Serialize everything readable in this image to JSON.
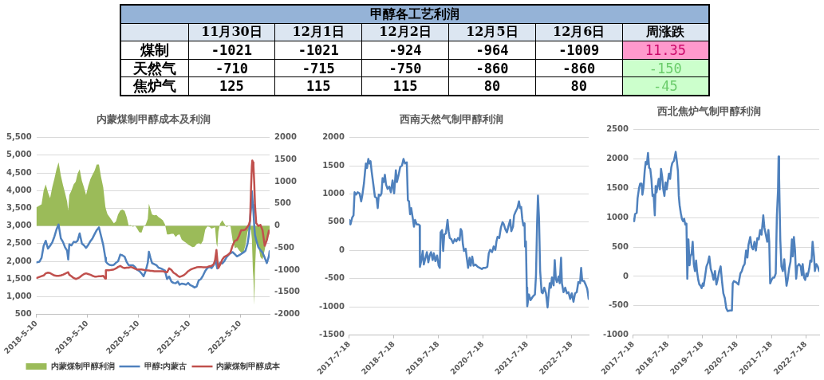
{
  "chart_data": [
    {
      "type": "heatmap",
      "title": "甲醇各工艺利润",
      "categories": [
        "11月30日",
        "12月1日",
        "12月2日",
        "12月5日",
        "12月6日",
        "周涨跌"
      ],
      "y_categories": [
        "煤制",
        "天然气",
        "焦炉气"
      ],
      "cells": [
        [
          -1021,
          -1021,
          -924,
          -964,
          -1009,
          11.35
        ],
        [
          -710,
          -715,
          -750,
          -860,
          -860,
          -150
        ],
        [
          125,
          115,
          115,
          80,
          80,
          -45
        ]
      ],
      "colors": [
        [
          "#ffffff",
          "#ffffff",
          "#ffffff",
          "#ffffff",
          "#ffffff",
          "#ff99cc"
        ],
        [
          "#ffffff",
          "#ffffff",
          "#ffffff",
          "#ffffff",
          "#ffffff",
          "#ccffcc"
        ],
        [
          "#ffffff",
          "#ffffff",
          "#ffffff",
          "#ffffff",
          "#ffffff",
          "#ccffcc"
        ]
      ],
      "data_labels": true
    },
    {
      "type": "line",
      "title": "内蒙煤制甲醇成本及利润",
      "x": [
        "2018-05-10",
        "2018-05-20",
        "2018-06-01",
        "2018-06-16",
        "2018-07-01",
        "2018-07-16",
        "2018-08-01",
        "2018-08-16",
        "2018-09-01",
        "2018-09-16",
        "2018-10-01",
        "2018-10-16",
        "2018-11-01",
        "2018-11-16",
        "2018-12-01",
        "2018-12-16",
        "2018-12-24",
        "2019-01-01",
        "2019-01-16",
        "2019-02-01",
        "2019-02-16",
        "2019-03-01",
        "2019-03-16",
        "2019-04-01",
        "2019-04-16",
        "2019-05-01",
        "2019-05-16",
        "2019-06-01",
        "2019-06-16",
        "2019-07-01",
        "2019-07-16",
        "2019-08-01",
        "2019-08-16",
        "2019-09-01",
        "2019-09-16",
        "2019-09-20",
        "2019-10-01",
        "2019-10-16",
        "2019-11-01",
        "2019-11-16",
        "2019-12-01",
        "2019-12-16",
        "2020-01-01",
        "2020-01-16",
        "2020-02-01",
        "2020-02-16",
        "2020-03-01",
        "2020-03-16",
        "2020-04-01",
        "2020-04-16",
        "2020-05-01",
        "2020-05-16",
        "2020-06-01",
        "2020-06-16",
        "2020-07-01",
        "2020-07-16",
        "2020-07-24",
        "2020-08-04",
        "2020-08-16",
        "2020-09-01",
        "2020-09-16",
        "2020-10-01",
        "2020-10-16",
        "2020-11-01",
        "2020-11-16",
        "2020-12-01",
        "2020-12-16",
        "2021-01-01",
        "2021-01-16",
        "2021-02-01",
        "2021-02-16",
        "2021-03-01",
        "2021-03-16",
        "2021-04-01",
        "2021-04-16",
        "2021-05-01",
        "2021-05-16",
        "2021-06-01",
        "2021-06-16",
        "2021-07-01",
        "2021-07-16",
        "2021-08-01",
        "2021-08-16",
        "2021-09-01",
        "2021-09-16",
        "2021-10-01",
        "2021-10-16",
        "2021-11-01",
        "2021-11-10",
        "2021-11-16",
        "2021-11-20",
        "2021-11-26",
        "2021-12-04",
        "2021-12-16",
        "2022-01-01",
        "2022-01-16",
        "2022-02-01",
        "2022-02-16",
        "2022-03-01",
        "2022-03-16",
        "2022-04-01",
        "2022-04-16",
        "2022-05-01",
        "2022-05-16",
        "2022-06-01",
        "2022-06-16",
        "2022-07-01",
        "2022-07-11",
        "2022-07-19",
        "2022-07-26",
        "2022-08-01",
        "2022-08-04",
        "2022-08-08",
        "2022-08-12",
        "2022-08-18",
        "2022-08-23",
        "2022-09-01",
        "2022-09-16",
        "2022-10-01",
        "2022-10-16",
        "2022-11-01",
        "2022-11-16",
        "2022-12-01",
        "2022-12-06"
      ],
      "series": [
        {
          "name": "内蒙煤制甲醇利润",
          "type": "area",
          "axis": "y2",
          "color": "#9bbb59",
          "values": [
            420,
            440,
            460,
            490,
            800,
            940,
            760,
            630,
            880,
            1070,
            1280,
            1440,
            1140,
            930,
            750,
            550,
            350,
            700,
            800,
            940,
            1000,
            1180,
            1280,
            1020,
            870,
            700,
            900,
            1060,
            1160,
            1250,
            1390,
            1390,
            1110,
            870,
            440,
            380,
            270,
            200,
            130,
            60,
            100,
            260,
            350,
            370,
            340,
            200,
            10,
            20,
            -20,
            10,
            -60,
            -140,
            -150,
            -10,
            30,
            160,
            500,
            380,
            260,
            240,
            250,
            200,
            170,
            130,
            40,
            -190,
            -190,
            -180,
            -180,
            -250,
            -200,
            -190,
            -310,
            -350,
            -380,
            -420,
            -450,
            -480,
            -470,
            -410,
            -390,
            -410,
            -330,
            -80,
            -10,
            -20,
            -60,
            -40,
            -30,
            -260,
            -400,
            -480,
            -130,
            50,
            130,
            50,
            -30,
            0,
            -10,
            -330,
            -500,
            -480,
            -550,
            -600,
            -610,
            -430,
            -130,
            -70,
            -60,
            -100,
            -300,
            -600,
            -1000,
            -1200,
            -1790,
            -1000,
            -350,
            -450,
            -700,
            -760,
            -540,
            -270,
            -200,
            -160
          ]
        },
        {
          "name": "甲醇:内蒙古",
          "type": "line",
          "color": "#4f81bd",
          "values": [
            1970,
            1980,
            1990,
            2100,
            2440,
            2580,
            2360,
            2440,
            2540,
            2700,
            2900,
            3040,
            2650,
            2550,
            2400,
            2300,
            2050,
            2480,
            2450,
            2550,
            2540,
            2580,
            2790,
            2500,
            2450,
            2380,
            2460,
            2570,
            2650,
            2770,
            2880,
            2960,
            2720,
            2460,
            2100,
            1990,
            1940,
            1900,
            1890,
            1900,
            1960,
            2000,
            2190,
            2170,
            2130,
            1980,
            1890,
            1890,
            1890,
            1840,
            1760,
            1730,
            1660,
            1580,
            1730,
            1960,
            2270,
            2100,
            1950,
            1920,
            1890,
            1820,
            1800,
            1770,
            1740,
            1500,
            1570,
            1430,
            1390,
            1380,
            1430,
            1340,
            1370,
            1360,
            1340,
            1390,
            1330,
            1300,
            1260,
            1290,
            1460,
            1500,
            1600,
            1730,
            1810,
            1840,
            1810,
            1900,
            2010,
            2050,
            1900,
            1800,
            1850,
            1960,
            1940,
            2010,
            2120,
            2190,
            2230,
            2260,
            2200,
            2140,
            2170,
            2210,
            2250,
            2300,
            2500,
            2760,
            3200,
            3500,
            3980,
            3800,
            3600,
            3400,
            3000,
            2750,
            2600,
            2400,
            2320,
            2250,
            2100,
            1950,
            2150,
            2290
          ]
        },
        {
          "name": "内蒙煤制甲醇成本",
          "type": "line",
          "color": "#c0504d",
          "values": [
            1530,
            1540,
            1560,
            1580,
            1600,
            1660,
            1680,
            1670,
            1630,
            1600,
            1590,
            1590,
            1600,
            1620,
            1650,
            1680,
            1690,
            1620,
            1580,
            1530,
            1500,
            1520,
            1550,
            1600,
            1640,
            1660,
            1640,
            1620,
            1590,
            1570,
            1570,
            1580,
            1580,
            1590,
            1510,
            1750,
            1750,
            1750,
            1760,
            1770,
            1800,
            1840,
            1870,
            1830,
            1810,
            1820,
            1820,
            1840,
            1820,
            1790,
            1770,
            1770,
            1770,
            1760,
            1750,
            1740,
            1740,
            1730,
            1730,
            1720,
            1720,
            1720,
            1720,
            1720,
            1700,
            1690,
            1800,
            1760,
            1680,
            1640,
            1590,
            1560,
            1580,
            1610,
            1660,
            1720,
            1760,
            1790,
            1810,
            1830,
            1840,
            1840,
            1830,
            1830,
            1840,
            1860,
            1870,
            1920,
            2030,
            2200,
            2320,
            2050,
            1810,
            1900,
            2050,
            2130,
            2160,
            2200,
            2260,
            2450,
            2580,
            2600,
            2720,
            2880,
            2880,
            2900,
            2980,
            3040,
            3150,
            4100,
            4700,
            4850,
            4800,
            4700,
            4200,
            3600,
            3080,
            3000,
            3030,
            2880,
            2440,
            2600,
            2870,
            2840
          ]
        }
      ],
      "xlim": [
        "2018-05-10",
        "2022-12-06"
      ],
      "xticks": [
        {
          "value": "2018-05-10",
          "label": "2018-5-10"
        },
        {
          "value": "2019-05-10",
          "label": "2019-5-10"
        },
        {
          "value": "2020-05-10",
          "label": "2020-5-10"
        },
        {
          "value": "2021-05-10",
          "label": "2021-5-10"
        },
        {
          "value": "2022-05-10",
          "label": "2022-5-10"
        }
      ],
      "ylim": [
        500,
        5500
      ],
      "yticks": [
        500,
        {
          "value": 1000,
          "label": "1,000"
        },
        {
          "value": 1500,
          "label": "1,500"
        },
        {
          "value": 2000,
          "label": "2,000"
        },
        {
          "value": 2500,
          "label": "2,500"
        },
        {
          "value": 3000,
          "label": "3,000"
        },
        {
          "value": 3500,
          "label": "3,500"
        },
        {
          "value": 4000,
          "label": "4,000"
        },
        {
          "value": 4500,
          "label": "4,500"
        },
        {
          "value": 5000,
          "label": "5,000"
        },
        {
          "value": 5500,
          "label": "5,500"
        }
      ],
      "y2lim": [
        -2000,
        2000
      ],
      "y2ticks": [
        -2000,
        -1500,
        -1000,
        -500,
        0,
        500,
        1000,
        1500,
        2000
      ],
      "grid": "y",
      "legend": "bottom"
    },
    {
      "type": "line",
      "title": "西南天然气制甲醇利润",
      "color": "#4f81bd",
      "x": [
        "2017-07-18",
        "2017-07-27",
        "2017-08-10",
        "2017-08-21",
        "2017-08-30",
        "2017-09-12",
        "2017-09-24",
        "2017-10-10",
        "2017-10-23",
        "2017-11-01",
        "2017-11-15",
        "2017-11-24",
        "2017-12-01",
        "2017-12-10",
        "2017-12-21",
        "2017-12-30",
        "2018-01-08",
        "2018-01-17",
        "2018-01-31",
        "2018-02-13",
        "2018-02-27",
        "2018-03-08",
        "2018-03-17",
        "2018-03-30",
        "2018-04-08",
        "2018-04-17",
        "2018-04-26",
        "2018-05-06",
        "2018-05-15",
        "2018-05-28",
        "2018-06-11",
        "2018-06-24",
        "2018-07-08",
        "2018-07-21",
        "2018-08-04",
        "2018-08-13",
        "2018-08-27",
        "2018-09-09",
        "2018-09-23",
        "2018-10-06",
        "2018-10-18",
        "2018-11-02",
        "2018-11-11",
        "2018-11-20",
        "2018-11-29",
        "2018-12-08",
        "2018-12-22",
        "2018-12-31",
        "2019-01-09",
        "2019-01-23",
        "2019-02-08",
        "2019-02-16",
        "2019-02-18",
        "2019-03-02",
        "2019-03-13",
        "2019-03-22",
        "2019-04-05",
        "2019-04-16",
        "2019-04-28",
        "2019-05-09",
        "2019-05-20",
        "2019-06-03",
        "2019-06-12",
        "2019-06-25",
        "2019-07-09",
        "2019-07-22",
        "2019-07-31",
        "2019-08-07",
        "2019-08-19",
        "2019-08-28",
        "2019-09-06",
        "2019-09-19",
        "2019-10-03",
        "2019-10-12",
        "2019-10-21",
        "2019-11-03",
        "2019-11-17",
        "2019-12-01",
        "2019-12-14",
        "2019-12-28",
        "2020-01-10",
        "2020-01-19",
        "2020-01-28",
        "2020-02-06",
        "2020-02-15",
        "2020-02-29",
        "2020-03-09",
        "2020-03-20",
        "2020-04-01",
        "2020-04-10",
        "2020-04-23",
        "2020-05-04",
        "2020-05-20",
        "2020-06-07",
        "2020-06-25",
        "2020-07-11",
        "2020-07-23",
        "2020-08-10",
        "2020-08-25",
        "2020-09-06",
        "2020-09-17",
        "2020-10-03",
        "2020-10-16",
        "2020-10-30",
        "2020-11-08",
        "2020-11-17",
        "2020-12-01",
        "2020-12-14",
        "2020-12-28",
        "2021-01-08",
        "2021-01-19",
        "2021-02-02",
        "2021-02-16",
        "2021-03-01",
        "2021-03-10",
        "2021-03-24",
        "2021-04-02",
        "2021-04-15",
        "2021-04-29",
        "2021-05-12",
        "2021-05-21",
        "2021-05-30",
        "2021-06-08",
        "2021-06-17",
        "2021-06-27",
        "2021-07-01",
        "2021-07-08",
        "2021-07-15",
        "2021-07-19",
        "2021-08-02",
        "2021-08-15",
        "2021-09-02",
        "2021-09-20",
        "2021-09-29",
        "2021-10-08",
        "2021-10-15",
        "2021-10-24",
        "2021-11-02",
        "2021-11-14",
        "2021-11-23",
        "2021-12-06",
        "2021-12-20",
        "2022-01-02",
        "2022-01-11",
        "2022-01-20",
        "2022-01-29",
        "2022-02-07",
        "2022-02-21",
        "2022-03-02",
        "2022-03-11",
        "2022-03-20",
        "2022-04-03",
        "2022-04-12",
        "2022-04-23",
        "2022-04-30",
        "2022-05-13",
        "2022-05-27",
        "2022-06-10",
        "2022-06-23",
        "2022-07-07",
        "2022-07-20",
        "2022-08-03",
        "2022-08-16",
        "2022-08-30",
        "2022-09-12",
        "2022-09-26",
        "2022-10-05",
        "2022-10-14",
        "2022-10-28",
        "2022-11-10",
        "2022-11-24",
        "2022-12-06"
      ],
      "values": [
        540,
        460,
        580,
        620,
        1030,
        990,
        1030,
        1010,
        870,
        970,
        1190,
        1400,
        1540,
        1460,
        1620,
        1540,
        1580,
        1400,
        1170,
        950,
        930,
        750,
        990,
        970,
        1010,
        1280,
        1210,
        1340,
        1170,
        1090,
        1130,
        1030,
        1240,
        1010,
        1420,
        1210,
        1340,
        1480,
        1500,
        1620,
        1540,
        1560,
        890,
        870,
        640,
        750,
        560,
        420,
        540,
        460,
        460,
        440,
        -290,
        -170,
        -10,
        -250,
        -130,
        -30,
        -210,
        -90,
        -30,
        -170,
        -50,
        -190,
        -90,
        -270,
        -310,
        320,
        360,
        -10,
        280,
        300,
        540,
        340,
        220,
        200,
        130,
        200,
        160,
        220,
        180,
        380,
        340,
        110,
        -10,
        30,
        -130,
        -310,
        -130,
        -270,
        -110,
        -270,
        -250,
        -290,
        -310,
        -330,
        -310,
        -310,
        -290,
        -50,
        10,
        -30,
        70,
        10,
        160,
        240,
        220,
        400,
        500,
        460,
        380,
        320,
        440,
        540,
        340,
        420,
        620,
        690,
        750,
        870,
        750,
        770,
        560,
        440,
        480,
        70,
        160,
        -660,
        -990,
        -780,
        -880,
        -820,
        -780,
        -440,
        480,
        970,
        560,
        -360,
        -740,
        -760,
        -660,
        -760,
        -1010,
        -780,
        -580,
        -660,
        -480,
        -620,
        -170,
        -500,
        -560,
        -460,
        -580,
        -130,
        -580,
        -740,
        -660,
        -760,
        -740,
        -860,
        -760,
        -910,
        -760,
        -740,
        -560,
        -580,
        -310,
        -540,
        -540,
        -600,
        -680,
        -860
      ],
      "xlim": [
        "2017-07-18",
        "2022-12-06"
      ],
      "xticks": [
        {
          "value": "2017-07-18",
          "label": "2017-7-18"
        },
        {
          "value": "2018-07-18",
          "label": "2018-7-18"
        },
        {
          "value": "2019-07-18",
          "label": "2019-7-18"
        },
        {
          "value": "2020-07-18",
          "label": "2020-7-18"
        },
        {
          "value": "2021-07-18",
          "label": "2021-7-18"
        },
        {
          "value": "2022-07-18",
          "label": "2022-7-18"
        }
      ],
      "ylim": [
        -1500,
        2000
      ],
      "yticks": [
        -1500,
        -1000,
        -500,
        0,
        500,
        1000,
        1500,
        2000
      ],
      "grid": "y"
    },
    {
      "type": "line",
      "title": "西北焦炉气制甲醇利润",
      "color": "#4f81bd",
      "x": [
        "2017-07-18",
        "2017-07-27",
        "2017-08-05",
        "2017-08-23",
        "2017-09-01",
        "2017-09-16",
        "2017-09-28",
        "2017-10-13",
        "2017-10-22",
        "2017-11-03",
        "2017-11-15",
        "2017-11-26",
        "2017-12-08",
        "2017-12-20",
        "2018-01-01",
        "2018-01-13",
        "2018-01-25",
        "2018-02-06",
        "2018-02-18",
        "2018-03-02",
        "2018-03-11",
        "2018-03-20",
        "2018-04-01",
        "2018-04-13",
        "2018-04-25",
        "2018-05-07",
        "2018-05-19",
        "2018-05-31",
        "2018-06-12",
        "2018-06-24",
        "2018-07-06",
        "2018-07-18",
        "2018-07-30",
        "2018-08-11",
        "2018-08-23",
        "2018-09-03",
        "2018-09-21",
        "2018-10-09",
        "2018-10-21",
        "2018-11-02",
        "2018-11-11",
        "2018-11-20",
        "2018-12-02",
        "2018-12-14",
        "2018-12-26",
        "2019-01-07",
        "2019-01-19",
        "2019-01-31",
        "2019-02-09",
        "2019-02-21",
        "2019-03-05",
        "2019-03-14",
        "2019-03-26",
        "2019-04-07",
        "2019-04-19",
        "2019-05-01",
        "2019-05-13",
        "2019-05-24",
        "2019-06-05",
        "2019-06-17",
        "2019-06-29",
        "2019-07-11",
        "2019-07-23",
        "2019-08-01",
        "2019-08-16",
        "2019-08-31",
        "2019-09-15",
        "2019-09-30",
        "2019-10-15",
        "2019-10-30",
        "2019-11-14",
        "2019-11-29",
        "2019-12-14",
        "2019-12-29",
        "2020-01-13",
        "2020-01-28",
        "2020-02-11",
        "2020-02-26",
        "2020-03-12",
        "2020-03-27",
        "2020-04-11",
        "2020-05-05",
        "2020-05-26",
        "2020-06-04",
        "2020-06-16",
        "2020-07-10",
        "2020-08-03",
        "2020-08-24",
        "2020-09-08",
        "2020-09-23",
        "2020-10-08",
        "2020-10-23",
        "2020-11-06",
        "2020-11-18",
        "2020-12-06",
        "2020-12-21",
        "2021-01-05",
        "2021-01-20",
        "2021-02-04",
        "2021-02-19",
        "2021-03-06",
        "2021-03-21",
        "2021-04-05",
        "2021-04-23",
        "2021-05-05",
        "2021-05-20",
        "2021-06-04",
        "2021-06-16",
        "2021-06-25",
        "2021-07-05",
        "2021-07-20",
        "2021-08-04",
        "2021-08-18",
        "2021-09-02",
        "2021-09-14",
        "2021-09-26",
        "2021-10-02",
        "2021-10-08",
        "2021-10-20",
        "2021-11-01",
        "2021-11-16",
        "2021-12-01",
        "2021-12-13",
        "2021-12-25",
        "2022-01-06",
        "2022-01-21",
        "2022-02-05",
        "2022-02-20",
        "2022-03-01",
        "2022-03-13",
        "2022-03-25",
        "2022-04-06",
        "2022-04-18",
        "2022-05-06",
        "2022-05-24",
        "2022-06-05",
        "2022-06-14",
        "2022-06-29",
        "2022-07-11",
        "2022-07-23",
        "2022-08-04",
        "2022-08-22",
        "2022-09-03",
        "2022-09-15",
        "2022-09-27",
        "2022-10-12",
        "2022-10-21",
        "2022-11-05",
        "2022-11-20",
        "2022-12-06"
      ],
      "values": [
        980,
        940,
        1060,
        1080,
        1330,
        1500,
        1580,
        1580,
        1390,
        1520,
        1790,
        1950,
        1910,
        2100,
        1850,
        1830,
        1660,
        1370,
        1390,
        1040,
        1540,
        1430,
        1540,
        1660,
        1480,
        1830,
        1700,
        1480,
        1370,
        1600,
        1480,
        1620,
        1750,
        1660,
        1850,
        1930,
        1970,
        2120,
        1970,
        1790,
        1370,
        1210,
        1080,
        980,
        940,
        980,
        880,
        900,
        -40,
        630,
        190,
        340,
        380,
        590,
        210,
        90,
        270,
        70,
        -60,
        -140,
        -160,
        -200,
        -120,
        -160,
        0,
        170,
        230,
        340,
        130,
        50,
        -60,
        90,
        -140,
        -40,
        90,
        170,
        -80,
        -290,
        -370,
        -540,
        -590,
        -580,
        -580,
        -120,
        -80,
        -100,
        -140,
        50,
        90,
        170,
        210,
        440,
        320,
        540,
        670,
        500,
        460,
        590,
        440,
        650,
        630,
        790,
        710,
        1040,
        830,
        710,
        590,
        790,
        590,
        -120,
        -60,
        -20,
        -20,
        50,
        1040,
        1460,
        2040,
        1660,
        630,
        170,
        90,
        290,
        50,
        -160,
        -60,
        130,
        250,
        630,
        340,
        670,
        440,
        -40,
        170,
        210,
        170,
        20,
        210,
        -20,
        -60,
        50,
        0,
        130,
        270,
        250,
        590,
        340,
        90,
        210,
        170,
        90
      ],
      "xlim": [
        "2017-07-18",
        "2022-12-06"
      ],
      "xticks": [
        {
          "value": "2017-07-18",
          "label": "2017-7-18"
        },
        {
          "value": "2018-07-18",
          "label": "2018-7-18"
        },
        {
          "value": "2019-07-18",
          "label": "2019-7-18"
        },
        {
          "value": "2020-07-18",
          "label": "2020-7-18"
        },
        {
          "value": "2021-07-18",
          "label": "2021-7-18"
        },
        {
          "value": "2022-07-18",
          "label": "2022-7-18"
        }
      ],
      "ylim": [
        -1000,
        2500
      ],
      "yticks": [
        -1000,
        -500,
        0,
        500,
        1000,
        1500,
        2000,
        2500
      ],
      "grid": "y"
    }
  ]
}
